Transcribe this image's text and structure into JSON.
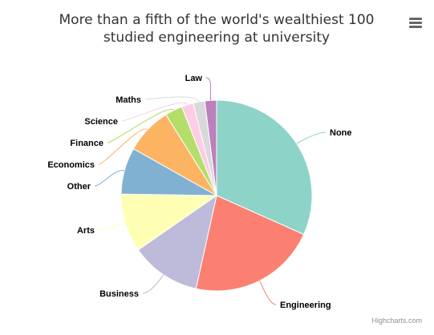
{
  "chart_data": {
    "type": "pie",
    "title_lines": [
      "More than a fifth of the world's wealthiest 100",
      "studied engineering at university"
    ],
    "slices": [
      {
        "name": "None",
        "value": 32,
        "color": "#8dd3c7"
      },
      {
        "name": "Engineering",
        "value": 22,
        "color": "#fb8072"
      },
      {
        "name": "Business",
        "value": 12,
        "color": "#bebada"
      },
      {
        "name": "Arts",
        "value": 10,
        "color": "#ffffb3"
      },
      {
        "name": "Other",
        "value": 8,
        "color": "#80b1d3"
      },
      {
        "name": "Economics",
        "value": 8,
        "color": "#fdb462"
      },
      {
        "name": "Finance",
        "value": 3,
        "color": "#b3de69"
      },
      {
        "name": "Science",
        "value": 2,
        "color": "#fccde5"
      },
      {
        "name": "Maths",
        "value": 2,
        "color": "#d9d9d9"
      },
      {
        "name": "Law",
        "value": 2,
        "color": "#bc80bd"
      }
    ]
  },
  "menu": {
    "icon": "hamburger-menu-icon"
  },
  "credits": "Highcharts.com"
}
